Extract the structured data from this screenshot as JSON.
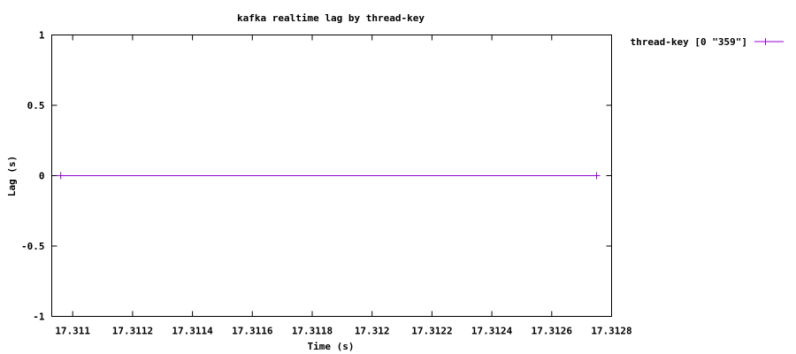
{
  "chart_data": {
    "type": "line",
    "title": "kafka realtime lag by thread-key",
    "xlabel": "Time (s)",
    "ylabel": "Lag (s)",
    "xlim": [
      17.31093,
      17.3128
    ],
    "ylim": [
      -1,
      1
    ],
    "x_ticks": [
      17.311,
      17.3112,
      17.3114,
      17.3116,
      17.3118,
      17.312,
      17.3122,
      17.3124,
      17.3126,
      17.3128
    ],
    "x_tick_labels": [
      "17.311",
      "17.3112",
      "17.3114",
      "17.3116",
      "17.3118",
      "17.312",
      "17.3122",
      "17.3124",
      "17.3126",
      "17.3128"
    ],
    "y_ticks": [
      -1,
      -0.5,
      0,
      0.5,
      1
    ],
    "y_tick_labels": [
      "-1",
      "-0.5",
      "0",
      "0.5",
      "1"
    ],
    "grid": false,
    "legend_position": "outside-right-top",
    "series": [
      {
        "name": "thread-key [0 \"359\"]",
        "color": "#9400d3",
        "marker": "plus",
        "x": [
          17.31096,
          17.31275
        ],
        "y": [
          0,
          0
        ]
      }
    ]
  }
}
